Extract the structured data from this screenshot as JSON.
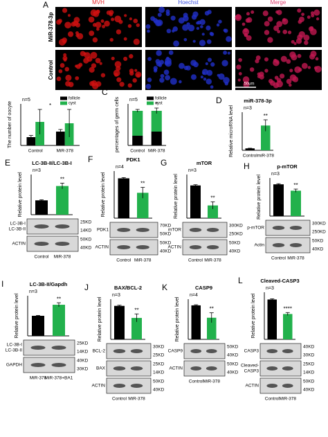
{
  "images": {
    "letter": "A",
    "columns": [
      "MVH",
      "Hoechst",
      "Merge"
    ],
    "rows": [
      "MiR-378-3p",
      "Control"
    ],
    "scale_label": "50um"
  },
  "chart_data": [
    {
      "type": "grouped_bar",
      "letter": "B",
      "ylabel": "The number of oocyte",
      "n": "n=5",
      "categories": [
        "Control",
        "MiR-378"
      ],
      "series": [
        {
          "name": "follicle",
          "color": "#000000",
          "values": [
            600,
            1000
          ],
          "errors": [
            120,
            150
          ]
        },
        {
          "name": "cyst",
          "color": "#22b14c",
          "values": [
            1700,
            1600
          ],
          "errors": [
            900,
            1000
          ]
        }
      ],
      "ylim": [
        0,
        3000
      ],
      "annotation": "*"
    },
    {
      "type": "stacked_bar",
      "letter": "C",
      "ylabel": "percentages of germ cells",
      "n": "n=5",
      "categories": [
        "Control",
        "MiR-378"
      ],
      "series": [
        {
          "name": "follicle",
          "color": "#000000",
          "values": [
            28,
            40
          ],
          "errors": [
            4,
            5
          ]
        },
        {
          "name": "cyst",
          "color": "#22b14c",
          "values": [
            72,
            60
          ],
          "errors": [
            4,
            8
          ]
        }
      ],
      "ylim": [
        0,
        120
      ],
      "annotation": "*"
    },
    {
      "type": "bar",
      "letter": "D",
      "title": "miR-378-3p",
      "ylabel": "Relative microRNA level",
      "n": "n=3",
      "categories": [
        "Control",
        "miR-378"
      ],
      "colors": [
        "#000000",
        "#22b14c"
      ],
      "values": [
        1,
        13
      ],
      "errors": [
        0.1,
        3
      ],
      "ylim": [
        0,
        20
      ],
      "annotation": "**"
    },
    {
      "type": "bar",
      "letter": "E",
      "title": "LC-3B-II/LC-3B-I",
      "ylabel": "Relative protein level",
      "n": "n=3",
      "categories": [
        "Control",
        "MiR-378"
      ],
      "colors": [
        "#000000",
        "#22b14c"
      ],
      "values": [
        0.5,
        1.0
      ],
      "errors": [
        0.02,
        0.1
      ],
      "ylim": [
        0,
        1.4
      ],
      "annotation": "**",
      "blot": [
        {
          "labels": [
            "LC-3B-I",
            "LC-3B-II"
          ],
          "kd": [
            "25KD",
            "14KD"
          ]
        },
        {
          "labels": [
            "ACTIN"
          ],
          "kd": [
            "50KD",
            "40KD"
          ]
        }
      ]
    },
    {
      "type": "bar",
      "letter": "F",
      "title": "PDK1",
      "ylabel": "Relative protein level",
      "n": "n=4",
      "categories": [
        "Control",
        "MiR-378"
      ],
      "colors": [
        "#000000",
        "#22b14c"
      ],
      "values": [
        1.1,
        0.7
      ],
      "errors": [
        0.02,
        0.15
      ],
      "ylim": [
        0,
        1.3
      ],
      "annotation": "**",
      "blot": [
        {
          "labels": [
            "PDK1"
          ],
          "kd": [
            "70KD",
            "50KD"
          ]
        },
        {
          "labels": [
            "ACTIN"
          ],
          "kd": [
            "50KD",
            "40KD"
          ]
        }
      ]
    },
    {
      "type": "bar",
      "letter": "G",
      "title": "mTOR",
      "ylabel": "Relative protein level",
      "n": "n=3",
      "categories": [
        "Control",
        "MiR-378"
      ],
      "colors": [
        "#000000",
        "#22b14c"
      ],
      "values": [
        0.9,
        0.35
      ],
      "errors": [
        0.02,
        0.1
      ],
      "ylim": [
        0,
        1.2
      ],
      "annotation": "**",
      "blot": [
        {
          "labels": [
            "mTOR"
          ],
          "kd": [
            "300KD",
            "250KD"
          ]
        },
        {
          "labels": [
            "ACTIN"
          ],
          "kd": [
            "50KD",
            "40KD"
          ]
        }
      ]
    },
    {
      "type": "bar",
      "letter": "H",
      "title": "p-mTOR",
      "ylabel": "Relative protein level",
      "n": "n=3",
      "categories": [
        "Control",
        "MiR-378"
      ],
      "colors": [
        "#000000",
        "#22b14c"
      ],
      "values": [
        1.0,
        0.8
      ],
      "errors": [
        0.02,
        0.05
      ],
      "ylim": [
        0,
        1.2
      ],
      "annotation": "**",
      "blot": [
        {
          "labels": [
            "p-mTOR"
          ],
          "kd": [
            "300KD",
            "250KD"
          ]
        },
        {
          "labels": [
            "Actin"
          ],
          "kd": [
            "50KD",
            "40KD"
          ]
        }
      ]
    },
    {
      "type": "bar",
      "letter": "I",
      "title": "LC-3B-II/Gapdh",
      "ylabel": "Relative protein level",
      "n": "n=3",
      "categories": [
        "MiR-378",
        "MiR-378+BA1"
      ],
      "colors": [
        "#000000",
        "#22b14c"
      ],
      "values": [
        1.0,
        1.55
      ],
      "errors": [
        0.02,
        0.1
      ],
      "ylim": [
        0,
        2
      ],
      "annotation": "**",
      "blot": [
        {
          "labels": [
            "LC-3B-I",
            "LC-3B-II"
          ],
          "kd": [
            "25KD",
            "14KD"
          ]
        },
        {
          "labels": [
            "GAPDH"
          ],
          "kd": [
            "40KD",
            "30KD"
          ]
        }
      ]
    },
    {
      "type": "bar",
      "letter": "J",
      "title": "BAX/BCL-2",
      "ylabel": "Relative protein level",
      "n": "n=3",
      "categories": [
        "Control",
        "MiR-378"
      ],
      "colors": [
        "#000000",
        "#22b14c"
      ],
      "values": [
        0.5,
        0.32
      ],
      "errors": [
        0.01,
        0.06
      ],
      "ylim": [
        0,
        0.6
      ],
      "annotation": "**",
      "blot": [
        {
          "labels": [
            "BCL-2"
          ],
          "kd": [
            "30KD",
            "25KD"
          ]
        },
        {
          "labels": [
            "BAX"
          ],
          "kd": [
            "25KD",
            "14KD"
          ]
        },
        {
          "labels": [
            "ACTIN"
          ],
          "kd": [
            "50KD",
            "40KD"
          ]
        }
      ]
    },
    {
      "type": "bar",
      "letter": "K",
      "title": "CASP9",
      "ylabel": "Relative protein level",
      "n": "n=4",
      "categories": [
        "Control",
        "MiR-378"
      ],
      "colors": [
        "#000000",
        "#22b14c"
      ],
      "values": [
        0.55,
        0.35
      ],
      "errors": [
        0.01,
        0.08
      ],
      "ylim": [
        0,
        0.65
      ],
      "annotation": "**",
      "blot": [
        {
          "labels": [
            "CASP9"
          ],
          "kd": [
            "50KD",
            "40KD"
          ]
        },
        {
          "labels": [
            "ACTIN"
          ],
          "kd": [
            "50KD",
            "40KD"
          ]
        }
      ]
    },
    {
      "type": "bar",
      "letter": "L",
      "title": "Cleaved-CASP3",
      "ylabel": "Relative protein level",
      "n": "n=3",
      "categories": [
        "Control",
        "MiR-378"
      ],
      "colors": [
        "#000000",
        "#22b14c"
      ],
      "values": [
        0.55,
        0.35
      ],
      "errors": [
        0.01,
        0.02
      ],
      "ylim": [
        0,
        0.65
      ],
      "annotation": "****",
      "blot": [
        {
          "labels": [
            "CASP3"
          ],
          "kd": [
            "40KD",
            "30KD"
          ]
        },
        {
          "labels": [
            "Cleaved-",
            "CASP3"
          ],
          "kd": [
            "25KD",
            "14KD"
          ]
        },
        {
          "labels": [
            "ACTIN"
          ],
          "kd": [
            "50KD",
            "40KD"
          ]
        }
      ]
    }
  ]
}
